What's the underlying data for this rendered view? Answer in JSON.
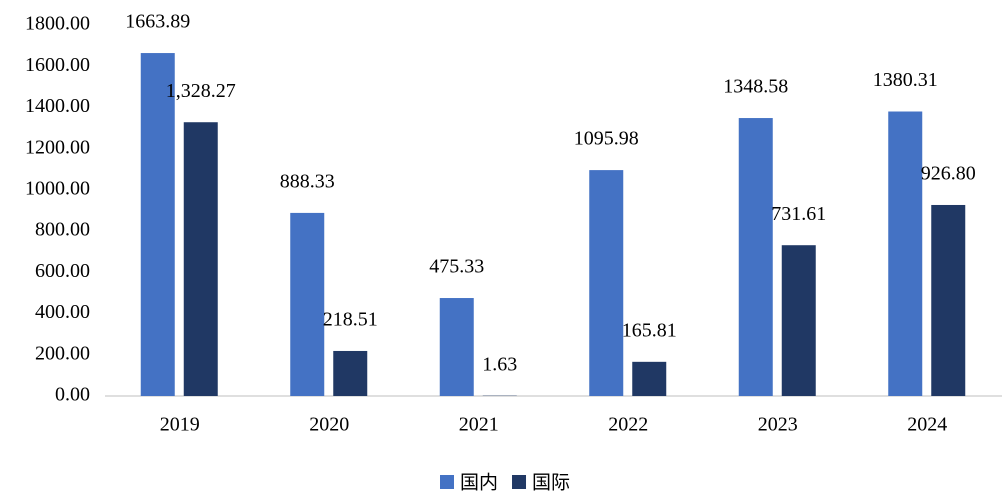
{
  "chart_data": {
    "type": "bar",
    "categories": [
      "2019",
      "2020",
      "2021",
      "2022",
      "2023",
      "2024"
    ],
    "series": [
      {
        "name": "国内",
        "color": "#4472c4",
        "values": [
          1663.89,
          888.33,
          475.33,
          1095.98,
          1348.58,
          1380.31
        ],
        "value_labels": [
          "1663.89",
          "888.33",
          "475.33",
          "1095.98",
          "1348.58",
          "1380.31"
        ]
      },
      {
        "name": "国际",
        "color": "#203864",
        "values": [
          1328.27,
          218.51,
          1.63,
          165.81,
          731.61,
          926.8
        ],
        "value_labels": [
          "1,328.27",
          "218.51",
          "1.63",
          "165.81",
          "731.61",
          "926.80"
        ]
      }
    ],
    "ylim": [
      0,
      1800
    ],
    "yticks": [
      {
        "value": 0,
        "label": "0.00"
      },
      {
        "value": 200,
        "label": "200.00"
      },
      {
        "value": 400,
        "label": "400.00"
      },
      {
        "value": 600,
        "label": "600.00"
      },
      {
        "value": 800,
        "label": "800.00"
      },
      {
        "value": 1000,
        "label": "1000.00"
      },
      {
        "value": 1200,
        "label": "1200.00"
      },
      {
        "value": 1400,
        "label": "1400.00"
      },
      {
        "value": 1600,
        "label": "1600.00"
      },
      {
        "value": 1800,
        "label": "1800.00"
      }
    ],
    "grid": false,
    "legend": "bottom"
  }
}
